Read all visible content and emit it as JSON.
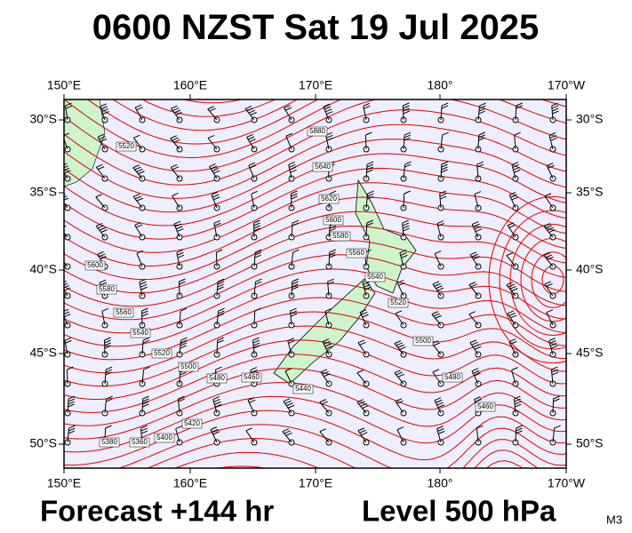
{
  "title": "0600 NZST Sat 19 Jul 2025",
  "map": {
    "top_labels": [
      "150°E",
      "160°E",
      "170°E",
      "180°",
      "170°W"
    ],
    "bottom_labels": [
      "150°E",
      "160°E",
      "170°E",
      "180°",
      "170°W"
    ],
    "left_labels": [
      "30°S",
      "35°S",
      "40°S",
      "45°S",
      "50°S"
    ],
    "right_labels": [
      "30°S",
      "35°S",
      "40°S",
      "45°S",
      "50°S"
    ],
    "contour_labels": [
      "5880",
      "5640",
      "5620",
      "5600",
      "5580",
      "5560",
      "5540",
      "5520",
      "5500",
      "5480",
      "5460",
      "5520",
      "5600",
      "5580",
      "5560",
      "5540",
      "5520",
      "5500",
      "5480",
      "5460",
      "5440",
      "5420",
      "5400",
      "5380",
      "5360"
    ]
  },
  "footer": {
    "forecast": "Forecast +144 hr",
    "level": "Level 500 hPa",
    "code": "M3"
  }
}
